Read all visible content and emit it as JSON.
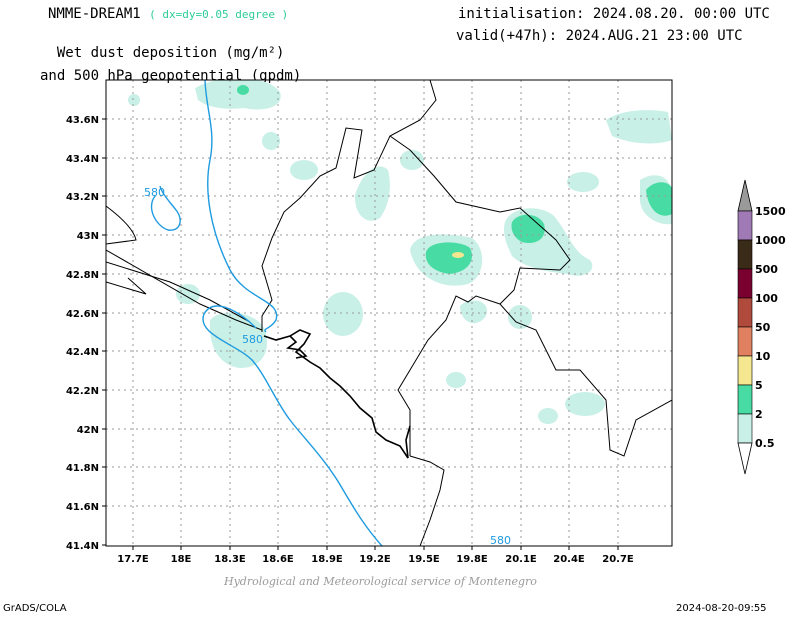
{
  "header": {
    "model": "NMME-DREAM1",
    "resolution": "( dx=dy=0.05 degree )",
    "title_line1": "Wet dust deposition (mg/m²)",
    "title_line2": "and 500 hPa geopotential (gpdm)",
    "initialisation": "initialisation: 2024.08.20. 00:00 UTC",
    "valid": "valid(+47h): 2024.AUG.21 23:00 UTC"
  },
  "map": {
    "lat_labels": [
      "43.6N",
      "43.4N",
      "43.2N",
      "43N",
      "42.8N",
      "42.6N",
      "42.4N",
      "42.2N",
      "42N",
      "41.8N",
      "41.6N",
      "41.4N"
    ],
    "lon_labels": [
      "17.7E",
      "18E",
      "18.3E",
      "18.6E",
      "18.9E",
      "19.2E",
      "19.5E",
      "19.8E",
      "20.1E",
      "20.4E",
      "20.7E"
    ],
    "contour_labels": [
      "580",
      "580",
      "580"
    ]
  },
  "colorbar": {
    "labels": [
      "1500",
      "1000",
      "500",
      "100",
      "50",
      "10",
      "5",
      "2",
      "0.5"
    ],
    "colors": [
      "#a07ab4",
      "#3a2a18",
      "#7a0030",
      "#b04a3c",
      "#e08060",
      "#f5e690",
      "#48dca4",
      "#c8f0e6"
    ]
  },
  "footer": {
    "credit": "Hydrological and Meteorological service of Montenegro",
    "left": "GrADS/COLA",
    "right": "2024-08-20-09:55"
  }
}
